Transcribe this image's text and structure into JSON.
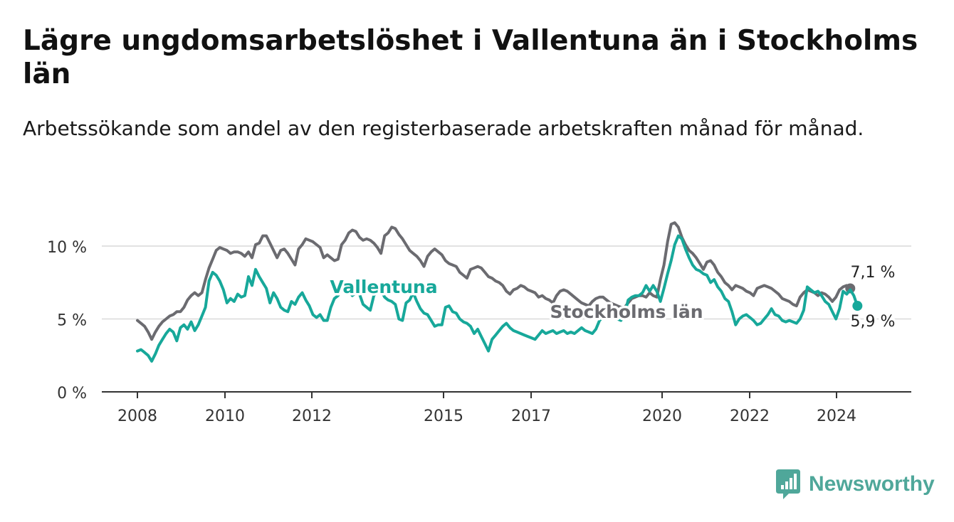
{
  "title": "Lägre ungdomsarbetslöshet i Vallentuna än i Stockholms län",
  "subtitle": "Arbetssökande som andel av den registerbaserade arbetskraften månad för månad.",
  "brand": {
    "name": "Newsworthy",
    "color": "#4fa79a",
    "icon": "newsworthy-logo-icon"
  },
  "chart_data": {
    "type": "line",
    "x_unit": "month",
    "x_tick_labels": [
      "2008",
      "2010",
      "2012",
      "2015",
      "2017",
      "2020",
      "2022",
      "2024"
    ],
    "y_tick_labels": [
      "0 %",
      "5 %",
      "10 %"
    ],
    "ylim": [
      0,
      12
    ],
    "grid": true,
    "legend": "inline labels",
    "end_labels": {
      "stockholm": "7,1 %",
      "vallentuna": "5,9 %"
    },
    "series": [
      {
        "name": "Stockholms län",
        "color": "#6b6b70",
        "x_start": "2008-01",
        "values": [
          4.9,
          4.7,
          4.5,
          4.1,
          3.6,
          4.1,
          4.5,
          4.8,
          5.0,
          5.2,
          5.3,
          5.5,
          5.5,
          5.8,
          6.3,
          6.6,
          6.8,
          6.6,
          6.8,
          7.7,
          8.5,
          9.1,
          9.7,
          9.9,
          9.8,
          9.7,
          9.5,
          9.6,
          9.6,
          9.5,
          9.3,
          9.6,
          9.2,
          10.1,
          10.2,
          10.7,
          10.7,
          10.2,
          9.7,
          9.2,
          9.7,
          9.8,
          9.5,
          9.1,
          8.7,
          9.8,
          10.1,
          10.5,
          10.4,
          10.3,
          10.1,
          9.9,
          9.2,
          9.4,
          9.2,
          9.0,
          9.1,
          10.1,
          10.4,
          10.9,
          11.1,
          11.0,
          10.6,
          10.4,
          10.5,
          10.4,
          10.2,
          9.9,
          9.5,
          10.7,
          10.9,
          11.3,
          11.2,
          10.8,
          10.5,
          10.1,
          9.7,
          9.5,
          9.3,
          9.0,
          8.6,
          9.3,
          9.6,
          9.8,
          9.6,
          9.4,
          9.0,
          8.8,
          8.7,
          8.6,
          8.2,
          8.0,
          7.8,
          8.4,
          8.5,
          8.6,
          8.5,
          8.2,
          7.9,
          7.8,
          7.6,
          7.5,
          7.3,
          6.9,
          6.7,
          7.0,
          7.1,
          7.3,
          7.2,
          7.0,
          6.9,
          6.8,
          6.5,
          6.6,
          6.4,
          6.3,
          6.1,
          6.6,
          6.9,
          7.0,
          6.9,
          6.7,
          6.5,
          6.3,
          6.1,
          6.0,
          5.9,
          6.2,
          6.4,
          6.5,
          6.5,
          6.3,
          6.1,
          6.0,
          5.9,
          5.8,
          5.8,
          6.1,
          6.4,
          6.5,
          6.6,
          6.6,
          6.5,
          6.8,
          6.6,
          6.5,
          7.7,
          8.7,
          10.3,
          11.5,
          11.6,
          11.3,
          10.6,
          10.1,
          9.7,
          9.5,
          9.2,
          8.8,
          8.4,
          8.9,
          9.0,
          8.7,
          8.2,
          7.9,
          7.5,
          7.3,
          7.0,
          7.3,
          7.2,
          7.1,
          6.9,
          6.8,
          6.6,
          7.1,
          7.2,
          7.3,
          7.2,
          7.1,
          6.9,
          6.7,
          6.4,
          6.3,
          6.2,
          6.0,
          5.9,
          6.5,
          6.8,
          7.0,
          6.9,
          6.8,
          6.6,
          6.8,
          6.7,
          6.5,
          6.2,
          6.5,
          7.0,
          7.2,
          7.3,
          7.1
        ]
      },
      {
        "name": "Vallentuna",
        "color": "#17a89a",
        "x_start": "2008-01",
        "values": [
          2.8,
          2.9,
          2.7,
          2.5,
          2.1,
          2.6,
          3.2,
          3.6,
          4.0,
          4.3,
          4.1,
          3.5,
          4.4,
          4.6,
          4.3,
          4.8,
          4.2,
          4.6,
          5.2,
          5.8,
          7.6,
          8.2,
          8.0,
          7.6,
          7.0,
          6.1,
          6.4,
          6.2,
          6.7,
          6.5,
          6.6,
          7.9,
          7.3,
          8.4,
          7.9,
          7.5,
          7.1,
          6.1,
          6.8,
          6.4,
          5.8,
          5.6,
          5.5,
          6.2,
          6.0,
          6.5,
          6.8,
          6.3,
          5.9,
          5.3,
          5.1,
          5.3,
          4.9,
          4.9,
          5.8,
          6.4,
          6.6,
          7.0,
          7.0,
          6.9,
          6.6,
          6.8,
          6.7,
          6.0,
          5.8,
          5.6,
          6.6,
          6.9,
          7.0,
          6.5,
          6.3,
          6.2,
          6.0,
          5.0,
          4.9,
          6.1,
          6.3,
          6.8,
          6.2,
          5.7,
          5.4,
          5.3,
          4.9,
          4.5,
          4.6,
          4.6,
          5.8,
          5.9,
          5.5,
          5.4,
          5.0,
          4.8,
          4.7,
          4.5,
          4.0,
          4.3,
          3.8,
          3.3,
          2.8,
          3.6,
          3.9,
          4.2,
          4.5,
          4.7,
          4.4,
          4.2,
          4.1,
          4.0,
          3.9,
          3.8,
          3.7,
          3.6,
          3.9,
          4.2,
          4.0,
          4.1,
          4.2,
          4.0,
          4.1,
          4.2,
          4.0,
          4.1,
          4.0,
          4.2,
          4.4,
          4.2,
          4.1,
          4.0,
          4.3,
          4.9,
          5.1,
          5.2,
          5.3,
          5.2,
          5.0,
          4.9,
          5.3,
          6.3,
          6.5,
          6.6,
          6.6,
          6.8,
          7.3,
          6.9,
          7.3,
          6.9,
          6.2,
          7.1,
          8.1,
          9.0,
          10.1,
          10.7,
          10.5,
          9.8,
          9.2,
          8.7,
          8.4,
          8.3,
          8.1,
          8.0,
          7.5,
          7.7,
          7.2,
          6.9,
          6.4,
          6.2,
          5.5,
          4.6,
          5.0,
          5.2,
          5.3,
          5.1,
          4.9,
          4.6,
          4.7,
          5.0,
          5.3,
          5.7,
          5.3,
          5.2,
          4.9,
          4.8,
          4.9,
          4.8,
          4.7,
          5.0,
          5.6,
          7.2,
          7.0,
          6.8,
          6.9,
          6.6,
          6.2,
          6.0,
          5.5,
          5.0,
          5.7,
          6.9,
          6.7,
          7.0,
          6.6,
          5.9
        ]
      }
    ]
  }
}
